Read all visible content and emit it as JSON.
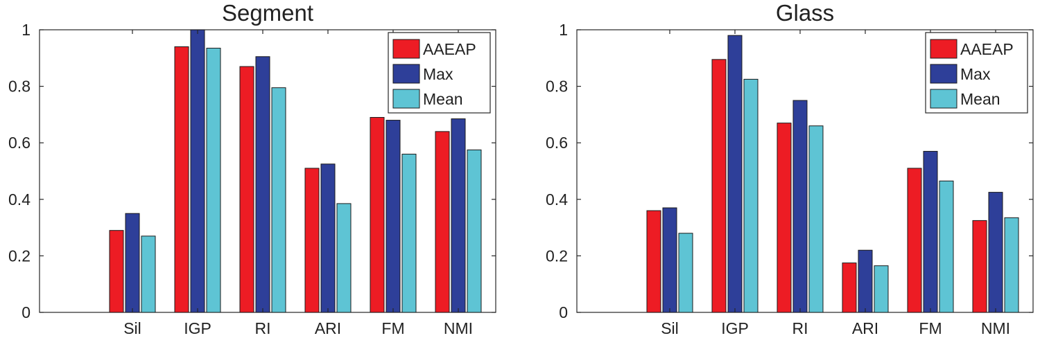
{
  "colors": {
    "AAEAP": "#ed1c24",
    "Max": "#2e3f99",
    "Mean": "#5ec4d4",
    "axis": "#262626",
    "bar_edge": "#1a1a1a"
  },
  "chart_data": [
    {
      "type": "bar",
      "title": "Segment",
      "categories": [
        "Sil",
        "IGP",
        "RI",
        "ARI",
        "FM",
        "NMI"
      ],
      "series": [
        {
          "name": "AAEAP",
          "values": [
            0.29,
            0.94,
            0.87,
            0.51,
            0.69,
            0.64
          ]
        },
        {
          "name": "Max",
          "values": [
            0.35,
            1.0,
            0.905,
            0.525,
            0.68,
            0.685
          ]
        },
        {
          "name": "Mean",
          "values": [
            0.27,
            0.935,
            0.795,
            0.385,
            0.56,
            0.575
          ]
        }
      ],
      "ylim": [
        0,
        1
      ],
      "yticks": [
        "0",
        "0.2",
        "0.4",
        "0.6",
        "0.8",
        "1"
      ],
      "xlabel": "",
      "ylabel": "",
      "legend_position": "top-right",
      "grid": false
    },
    {
      "type": "bar",
      "title": "Glass",
      "categories": [
        "Sil",
        "IGP",
        "RI",
        "ARI",
        "FM",
        "NMI"
      ],
      "series": [
        {
          "name": "AAEAP",
          "values": [
            0.36,
            0.895,
            0.67,
            0.175,
            0.51,
            0.325
          ]
        },
        {
          "name": "Max",
          "values": [
            0.37,
            0.98,
            0.75,
            0.22,
            0.57,
            0.425
          ]
        },
        {
          "name": "Mean",
          "values": [
            0.28,
            0.825,
            0.66,
            0.165,
            0.465,
            0.335
          ]
        }
      ],
      "ylim": [
        0,
        1
      ],
      "yticks": [
        "0",
        "0.2",
        "0.4",
        "0.6",
        "0.8",
        "1"
      ],
      "xlabel": "",
      "ylabel": "",
      "legend_position": "top-right",
      "grid": false
    }
  ]
}
